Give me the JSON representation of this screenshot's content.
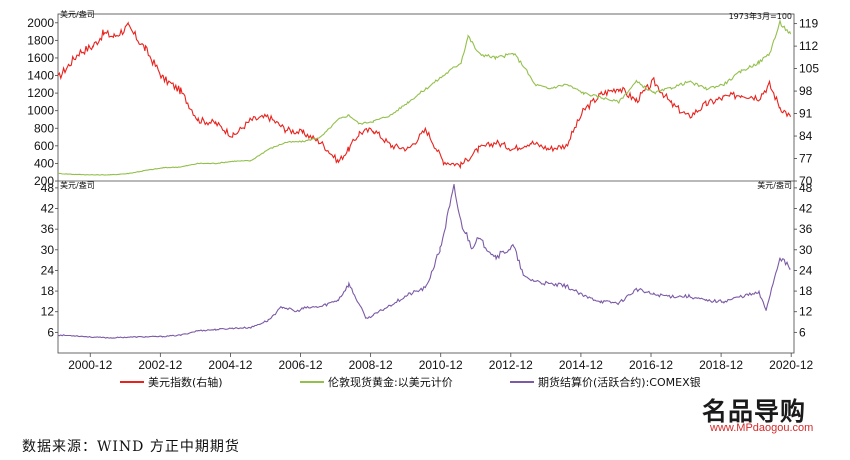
{
  "chart_data": [
    {
      "type": "line",
      "panel": "top",
      "ylabel_left": "美元/盎司",
      "ylabel_right": "1973年3月=100",
      "left_ticks": [
        "2000",
        "1800",
        "1600",
        "1400",
        "1200",
        "1000",
        "800",
        "600",
        "400",
        "200"
      ],
      "right_ticks": [
        "119",
        "112",
        "105",
        "98",
        "91",
        "84",
        "77",
        "70"
      ],
      "ylim_left": [
        200,
        2100
      ],
      "ylim_right": [
        70,
        122
      ],
      "series": [
        {
          "name": "美元指数(右轴)",
          "axis": "right",
          "color": "#e8231e",
          "x": [
            2000.0,
            2000.3,
            2000.6,
            2001.0,
            2001.3,
            2001.6,
            2002.0,
            2002.5,
            2003.0,
            2003.5,
            2004.0,
            2004.5,
            2005.0,
            2005.5,
            2006.0,
            2006.5,
            2007.0,
            2007.5,
            2008.0,
            2008.3,
            2008.6,
            2009.0,
            2009.5,
            2010.0,
            2010.5,
            2011.0,
            2011.5,
            2012.0,
            2012.5,
            2013.0,
            2013.5,
            2014.0,
            2014.5,
            2015.0,
            2015.5,
            2016.0,
            2016.5,
            2017.0,
            2017.5,
            2018.0,
            2018.5,
            2019.0,
            2019.5,
            2020.0,
            2020.3,
            2020.6,
            2020.9
          ],
          "values": [
            102,
            106,
            110,
            112,
            116,
            115,
            118,
            111,
            102,
            98,
            89,
            88,
            84,
            89,
            90,
            86,
            85,
            82,
            76,
            80,
            85,
            86,
            81,
            80,
            86,
            76,
            75,
            80,
            82,
            80,
            82,
            80,
            81,
            92,
            97,
            99,
            95,
            101,
            94,
            90,
            94,
            96,
            97,
            96,
            100,
            93,
            90
          ]
        },
        {
          "name": "伦敦现货黄金:以美元计价",
          "axis": "left",
          "color": "#93c04c",
          "x": [
            2000.0,
            2000.5,
            2001.0,
            2001.5,
            2002.0,
            2002.5,
            2003.0,
            2003.5,
            2004.0,
            2004.5,
            2005.0,
            2005.5,
            2006.0,
            2006.5,
            2007.0,
            2007.5,
            2008.0,
            2008.3,
            2008.6,
            2009.0,
            2009.5,
            2010.0,
            2010.5,
            2011.0,
            2011.5,
            2011.7,
            2012.0,
            2012.5,
            2013.0,
            2013.3,
            2013.6,
            2014.0,
            2014.5,
            2015.0,
            2015.5,
            2016.0,
            2016.5,
            2017.0,
            2017.5,
            2018.0,
            2018.5,
            2019.0,
            2019.5,
            2020.0,
            2020.3,
            2020.6,
            2020.9
          ],
          "values": [
            285,
            275,
            270,
            270,
            285,
            320,
            350,
            360,
            400,
            400,
            425,
            430,
            560,
            640,
            650,
            700,
            900,
            950,
            850,
            880,
            950,
            1100,
            1250,
            1400,
            1550,
            1850,
            1650,
            1600,
            1650,
            1500,
            1300,
            1250,
            1300,
            1200,
            1150,
            1100,
            1330,
            1200,
            1260,
            1330,
            1250,
            1300,
            1450,
            1550,
            1650,
            2000,
            1870
          ]
        }
      ]
    },
    {
      "type": "line",
      "panel": "bottom",
      "ylabel_left": "美元/盎司",
      "ylabel_right": "美元/盎司",
      "ticks": [
        "48",
        "42",
        "36",
        "30",
        "24",
        "18",
        "12",
        "6"
      ],
      "ylim": [
        0,
        50
      ],
      "xlabels": [
        "2000-12",
        "2002-12",
        "2004-12",
        "2006-12",
        "2008-12",
        "2010-12",
        "2012-12",
        "2014-12",
        "2016-12",
        "2018-12",
        "2020-12"
      ],
      "xlim": [
        2000.0,
        2021.0
      ],
      "series": [
        {
          "name": "期货结算价(活跃合约):COMEX银",
          "color": "#7b5aa6",
          "x": [
            2000.0,
            2000.5,
            2001.0,
            2001.5,
            2002.0,
            2002.5,
            2003.0,
            2003.5,
            2004.0,
            2004.5,
            2005.0,
            2005.5,
            2006.0,
            2006.4,
            2006.8,
            2007.0,
            2007.5,
            2008.0,
            2008.3,
            2008.8,
            2009.0,
            2009.5,
            2010.0,
            2010.5,
            2010.9,
            2011.3,
            2011.5,
            2011.8,
            2012.0,
            2012.5,
            2013.0,
            2013.3,
            2013.6,
            2014.0,
            2014.5,
            2015.0,
            2015.5,
            2016.0,
            2016.5,
            2017.0,
            2017.5,
            2018.0,
            2018.5,
            2019.0,
            2019.5,
            2020.0,
            2020.2,
            2020.6,
            2020.9
          ],
          "values": [
            5.2,
            5.0,
            4.6,
            4.4,
            4.6,
            4.7,
            4.8,
            5.2,
            6.5,
            6.8,
            7.2,
            7.4,
            9.5,
            13.5,
            12.0,
            13.0,
            13.5,
            15.5,
            20.0,
            10.0,
            11.0,
            14.0,
            17.0,
            19.0,
            30.0,
            48.0,
            38.0,
            31.0,
            33.0,
            28.0,
            31.0,
            22.0,
            21.0,
            20.0,
            19.5,
            16.5,
            15.0,
            14.5,
            18.5,
            17.0,
            16.5,
            16.5,
            15.2,
            15.0,
            16.5,
            17.5,
            12.5,
            28.0,
            24.5
          ]
        }
      ]
    }
  ],
  "source_text": "数据来源：WIND  方正中期期货",
  "watermark": {
    "main": "名品导购",
    "url": "www.MPdaogou.com"
  }
}
